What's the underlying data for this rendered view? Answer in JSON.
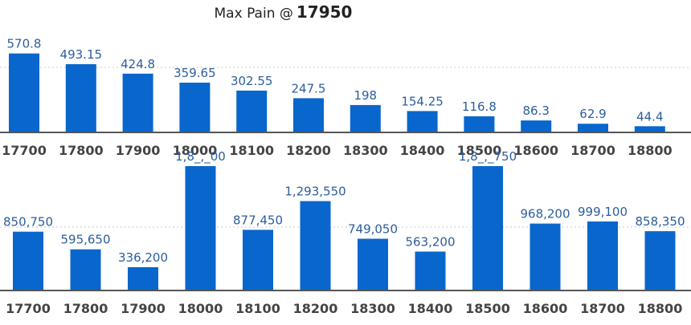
{
  "header": {
    "label": "Max Pain @",
    "value": "17950"
  },
  "colors": {
    "bar": "#0966cc",
    "grid": "#c8c8c8",
    "axis": "#555555",
    "value_label": "#2c5e9c",
    "tick_label": "#444444"
  },
  "chart_data": [
    {
      "type": "bar",
      "title": "",
      "categories": [
        "17700",
        "17800",
        "17900",
        "18000",
        "18100",
        "18200",
        "18300",
        "18400",
        "18500",
        "18600",
        "18700",
        "18800"
      ],
      "values": [
        570.8,
        493.15,
        424.8,
        359.65,
        302.55,
        247.5,
        198,
        154.25,
        116.8,
        86.3,
        62.9,
        44.4
      ],
      "labels": [
        "570.8",
        "493.15",
        "424.8",
        "359.65",
        "302.55",
        "247.5",
        "198",
        "154.25",
        "116.8",
        "86.3",
        "62.9",
        "44.4"
      ],
      "ylim": [
        0,
        650
      ],
      "grid": true,
      "xlabel": "",
      "ylabel": ""
    },
    {
      "type": "bar",
      "title": "",
      "categories": [
        "17700",
        "17800",
        "17900",
        "18000",
        "18100",
        "18200",
        "18300",
        "18400",
        "18500",
        "18600",
        "18700",
        "18800"
      ],
      "values": [
        850750,
        595650,
        336200,
        1800000,
        877450,
        1293550,
        749050,
        563200,
        1850750,
        968200,
        999100,
        858350
      ],
      "labels": [
        "850,750",
        "595,650",
        "336,200",
        "1,8_,_00",
        "877,450",
        "1,293,550",
        "749,050",
        "563,200",
        "1,8_,_750",
        "968,200",
        "999,100",
        "858,350"
      ],
      "ylim": [
        0,
        1800000
      ],
      "grid": true,
      "xlabel": "",
      "ylabel": ""
    }
  ]
}
